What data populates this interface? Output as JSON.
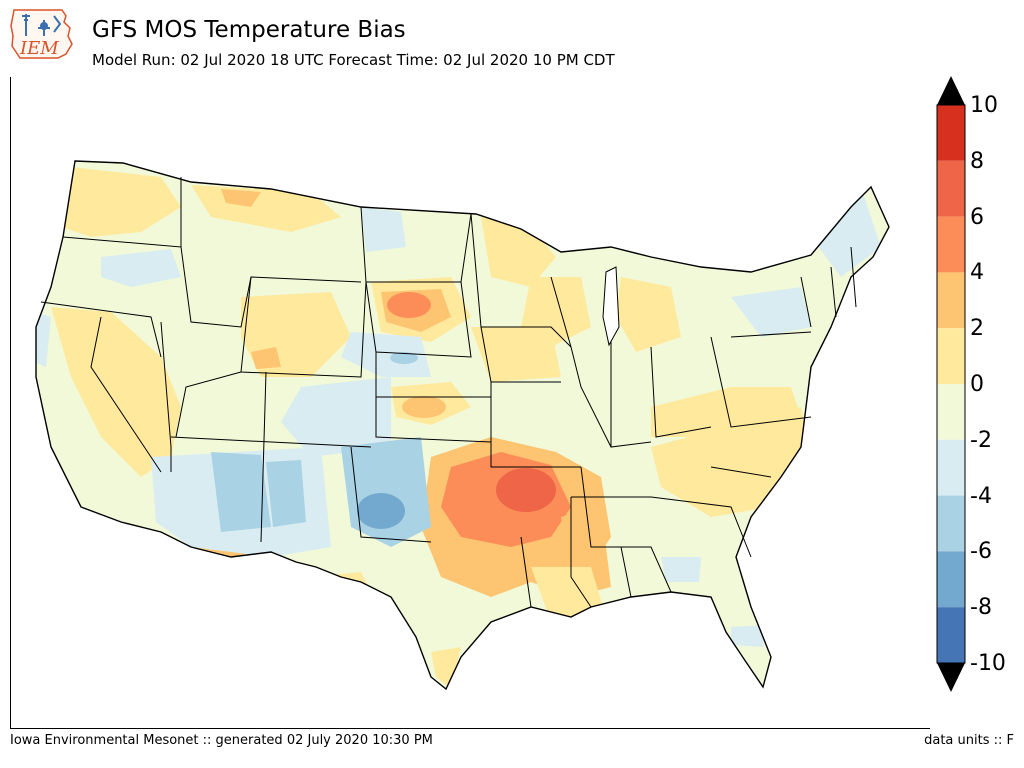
{
  "header": {
    "title": "GFS MOS Temperature Bias",
    "subtitle": "Model Run: 02 Jul 2020 18 UTC Forecast Time: 02 Jul 2020 10 PM CDT",
    "logo_text": "IEM"
  },
  "colorbar": {
    "labels": [
      "10",
      "8",
      "6",
      "4",
      "2",
      "0",
      "-2",
      "-4",
      "-6",
      "-8",
      "-10"
    ],
    "colors_top_to_bottom": [
      "#d7301f",
      "#ef6548",
      "#fc8d59",
      "#fdc471",
      "#fee99d",
      "#f1f9d8",
      "#d8ecf2",
      "#a9d2e5",
      "#74a9cf",
      "#4575b4"
    ],
    "over_color": "#000000",
    "under_color": "#000000"
  },
  "footer": {
    "left": "Iowa Environmental Mesonet :: generated 02 July 2020 10:30 PM",
    "right": "data units :: F"
  },
  "bias_regions": [
    {
      "name": "northwest",
      "level": "0 to 2"
    },
    {
      "name": "nevada",
      "level": "0 to 2"
    },
    {
      "name": "west-central-montana",
      "level": "-2 to 0"
    },
    {
      "name": "idaho",
      "level": "-2 to -4"
    },
    {
      "name": "wyoming",
      "level": "0 to 2"
    },
    {
      "name": "south-dakota",
      "level": "4 to 6"
    },
    {
      "name": "colorado",
      "level": "-2 to -4"
    },
    {
      "name": "kansas",
      "level": "2 to 4"
    },
    {
      "name": "new-mexico",
      "level": "-4 to -6"
    },
    {
      "name": "texas-panhandle",
      "level": "-6 to -8"
    },
    {
      "name": "oklahoma-arkansas",
      "level": "6 to 8"
    },
    {
      "name": "mississippi",
      "level": "2 to 4"
    },
    {
      "name": "southeast",
      "level": "0 to 2"
    },
    {
      "name": "great-lakes",
      "level": "0 to 2"
    },
    {
      "name": "new-england",
      "level": "-2 to -4"
    },
    {
      "name": "florida",
      "level": "-2 to -4"
    }
  ]
}
